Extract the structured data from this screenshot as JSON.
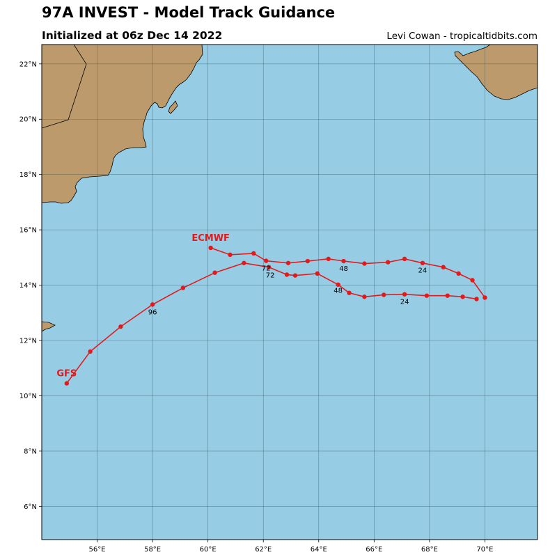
{
  "header": {
    "title": "97A INVEST - Model Track Guidance",
    "subtitle": "Initialized at 06z Dec 14 2022",
    "credit": "Levi Cowan - tropicaltidbits.com"
  },
  "map": {
    "lon_range": [
      54.0,
      71.9
    ],
    "lat_range": [
      4.8,
      22.7
    ],
    "lon_ticks": [
      "56°E",
      "58°E",
      "60°E",
      "62°E",
      "64°E",
      "66°E",
      "68°E",
      "70°E"
    ],
    "lon_values": [
      56,
      58,
      60,
      62,
      64,
      66,
      68,
      70
    ],
    "lat_ticks": [
      "6°N",
      "8°N",
      "10°N",
      "12°N",
      "14°N",
      "16°N",
      "18°N",
      "20°N",
      "22°N"
    ],
    "lat_values": [
      6,
      8,
      10,
      12,
      14,
      16,
      18,
      20,
      22
    ],
    "colors": {
      "ocean": "#96cde5",
      "land": "#bc9a6b",
      "track": "#e31a1c",
      "label": "#e31a1c"
    },
    "models": [
      {
        "name": "ECMWF",
        "points": [
          [
            70.0,
            13.55
          ],
          [
            69.55,
            14.18
          ],
          [
            69.05,
            14.42
          ],
          [
            68.5,
            14.65
          ],
          [
            67.75,
            14.8
          ],
          [
            67.1,
            14.95
          ],
          [
            66.5,
            14.83
          ],
          [
            65.65,
            14.78
          ],
          [
            64.9,
            14.87
          ],
          [
            64.35,
            14.95
          ],
          [
            63.6,
            14.87
          ],
          [
            62.9,
            14.8
          ],
          [
            62.1,
            14.88
          ],
          [
            61.65,
            15.15
          ],
          [
            60.8,
            15.1
          ],
          [
            60.1,
            15.35
          ]
        ],
        "hour_labels": [
          {
            "text": "24",
            "lon": 67.75,
            "lat": 14.45
          },
          {
            "text": "48",
            "lon": 64.9,
            "lat": 14.52
          },
          {
            "text": "72",
            "lon": 62.1,
            "lat": 14.53
          }
        ]
      },
      {
        "name": "GFS",
        "points": [
          [
            69.7,
            13.5
          ],
          [
            69.2,
            13.58
          ],
          [
            68.65,
            13.62
          ],
          [
            67.9,
            13.62
          ],
          [
            67.1,
            13.67
          ],
          [
            66.35,
            13.65
          ],
          [
            65.65,
            13.58
          ],
          [
            65.1,
            13.72
          ],
          [
            64.7,
            14.02
          ],
          [
            63.95,
            14.42
          ],
          [
            63.15,
            14.35
          ],
          [
            62.85,
            14.38
          ],
          [
            62.2,
            14.65
          ],
          [
            61.3,
            14.8
          ],
          [
            60.25,
            14.45
          ],
          [
            59.1,
            13.9
          ],
          [
            58.0,
            13.3
          ],
          [
            56.85,
            12.5
          ],
          [
            55.75,
            11.6
          ],
          [
            54.9,
            10.45
          ]
        ],
        "hour_labels": [
          {
            "text": "24",
            "lon": 67.1,
            "lat": 13.32
          },
          {
            "text": "48",
            "lon": 64.7,
            "lat": 13.72
          },
          {
            "text": "72",
            "lon": 62.25,
            "lat": 14.28
          },
          {
            "text": "96",
            "lon": 58.0,
            "lat": 12.95
          }
        ]
      }
    ]
  }
}
